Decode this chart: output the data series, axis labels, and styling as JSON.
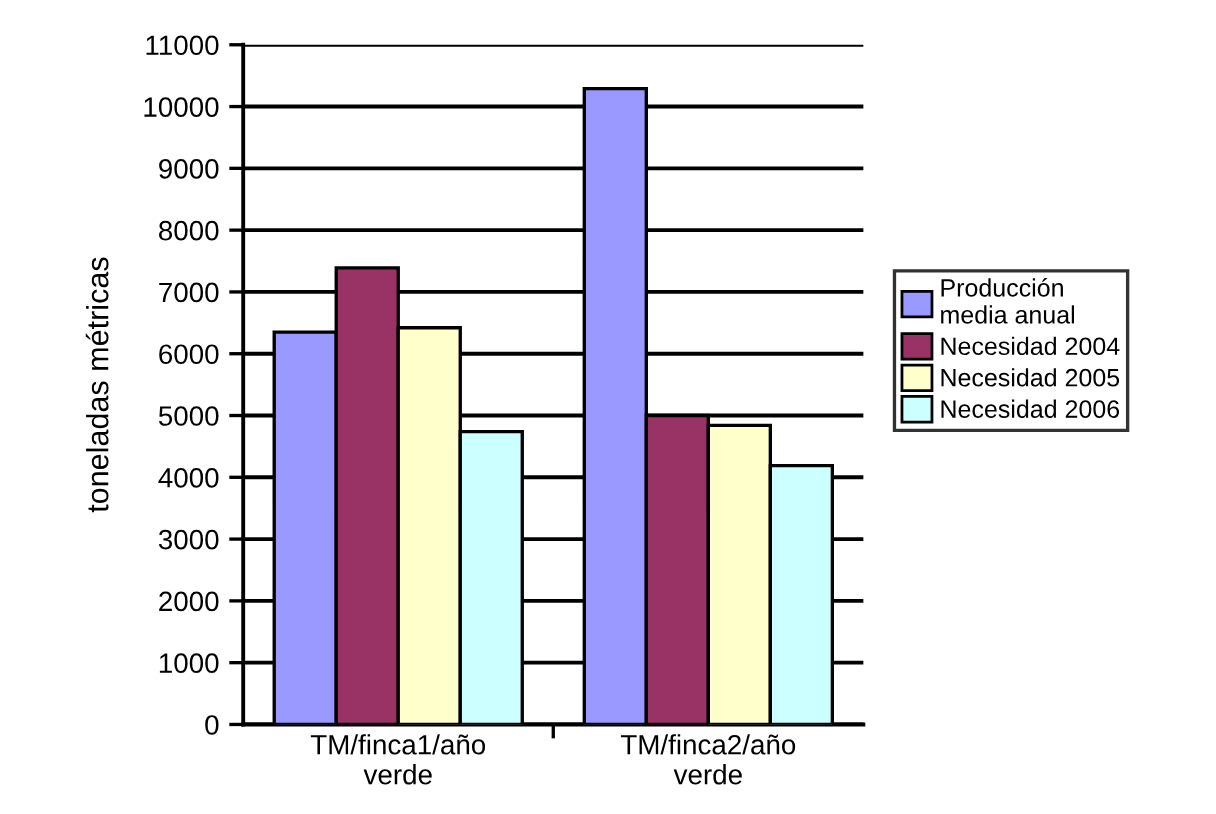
{
  "chart_data": {
    "type": "bar",
    "ylabel": "toneladas métricas",
    "categories": [
      "TM/finca1/año\nverde",
      "TM/finca2/año\nverde"
    ],
    "series": [
      {
        "name": "Producción\nmedia anual",
        "color": "#9999ff",
        "values": [
          6350,
          10290
        ]
      },
      {
        "name": "Necesidad 2004",
        "color": "#993366",
        "values": [
          7390,
          5000
        ]
      },
      {
        "name": "Necesidad 2005",
        "color": "#ffffcc",
        "values": [
          6420,
          4840
        ]
      },
      {
        "name": "Necesidad 2006",
        "color": "#ccffff",
        "values": [
          4740,
          4190
        ]
      }
    ],
    "ylim": [
      0,
      11000
    ],
    "yticks": [
      0,
      1000,
      2000,
      3000,
      4000,
      5000,
      6000,
      7000,
      8000,
      9000,
      10000,
      11000
    ],
    "grid": "y",
    "legend": "right"
  }
}
